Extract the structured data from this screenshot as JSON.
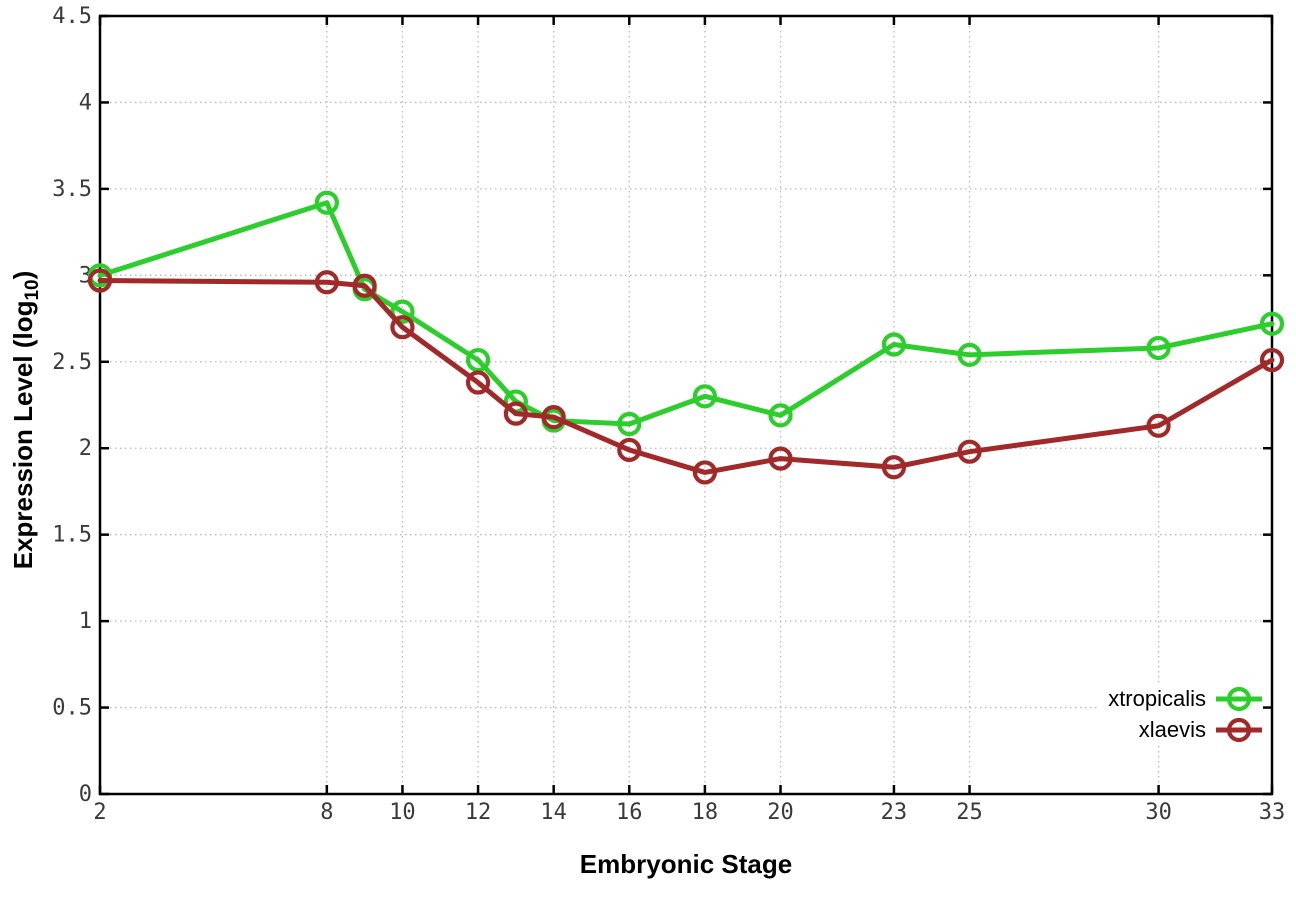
{
  "chart_data": {
    "type": "line",
    "xlabel": "Embryonic Stage",
    "ylabel": "Expression Level (log10)",
    "ylabel_parts": {
      "prefix": "Expression Level (log",
      "sub": "10",
      "suffix": ")"
    },
    "x": [
      2,
      8,
      9,
      10,
      12,
      13,
      14,
      16,
      18,
      20,
      23,
      25,
      30,
      33
    ],
    "series": [
      {
        "name": "xtropicalis",
        "color": "#2bce2b",
        "values": [
          3.0,
          3.42,
          2.92,
          2.79,
          2.51,
          2.27,
          2.16,
          2.14,
          2.3,
          2.19,
          2.6,
          2.54,
          2.58,
          2.72
        ]
      },
      {
        "name": "xlaevis",
        "color": "#a22929",
        "values": [
          2.97,
          2.96,
          2.94,
          2.7,
          2.38,
          2.2,
          2.18,
          1.99,
          1.86,
          1.94,
          1.89,
          1.98,
          2.13,
          2.51
        ]
      }
    ],
    "xlim": [
      2,
      33
    ],
    "ylim": [
      0,
      4.5
    ],
    "xticks": [
      2,
      8,
      10,
      12,
      14,
      16,
      18,
      20,
      23,
      25,
      30,
      33
    ],
    "xtick_labels": [
      "2",
      "8",
      "10",
      "12",
      "14",
      "16",
      "18",
      "20",
      "23",
      "25",
      "30",
      "33"
    ],
    "yticks": [
      0,
      0.5,
      1,
      1.5,
      2,
      2.5,
      3,
      3.5,
      4,
      4.5
    ],
    "ytick_labels": [
      "0",
      "0.5",
      "1",
      "1.5",
      "2",
      "2.5",
      "3",
      "3.5",
      "4",
      "4.5"
    ],
    "grid": true,
    "marker": "open-circle",
    "legend_position": "bottom-right",
    "colors": {
      "grid": "#b9b9b9",
      "axis": "#000000",
      "tick_text": "#3a3a3a"
    }
  }
}
